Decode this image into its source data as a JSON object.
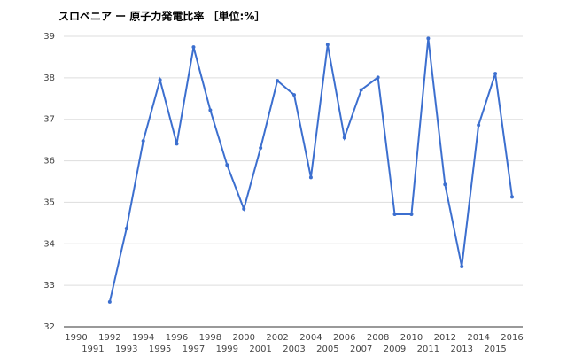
{
  "chart_data": {
    "type": "line",
    "title": "スロベニア ー 原子力発電比率 ［単位:%］",
    "x": [
      1990,
      1991,
      1992,
      1993,
      1994,
      1995,
      1996,
      1997,
      1998,
      1999,
      2000,
      2001,
      2002,
      2003,
      2004,
      2005,
      2006,
      2007,
      2008,
      2009,
      2010,
      2011,
      2012,
      2013,
      2014,
      2015,
      2016
    ],
    "series": [
      {
        "color": "#3c6fcf",
        "values": [
          null,
          null,
          32.6,
          34.37,
          36.48,
          37.95,
          36.41,
          38.74,
          37.22,
          35.9,
          34.84,
          36.31,
          37.93,
          37.59,
          35.6,
          38.8,
          36.56,
          37.71,
          38.01,
          34.71,
          34.71,
          38.95,
          35.43,
          33.45,
          36.86,
          38.1,
          35.13
        ]
      }
    ],
    "xlim": [
      1990,
      2016
    ],
    "xticks": [
      1990,
      1991,
      1992,
      1993,
      1994,
      1995,
      1996,
      1997,
      1998,
      1999,
      2000,
      2001,
      2002,
      2003,
      2004,
      2005,
      2006,
      2007,
      2008,
      2009,
      2010,
      2011,
      2012,
      2013,
      2014,
      2015,
      2016
    ],
    "ylim": [
      32,
      39
    ],
    "yticks": [
      32,
      33,
      34,
      35,
      36,
      37,
      38,
      39
    ],
    "grid": true
  }
}
